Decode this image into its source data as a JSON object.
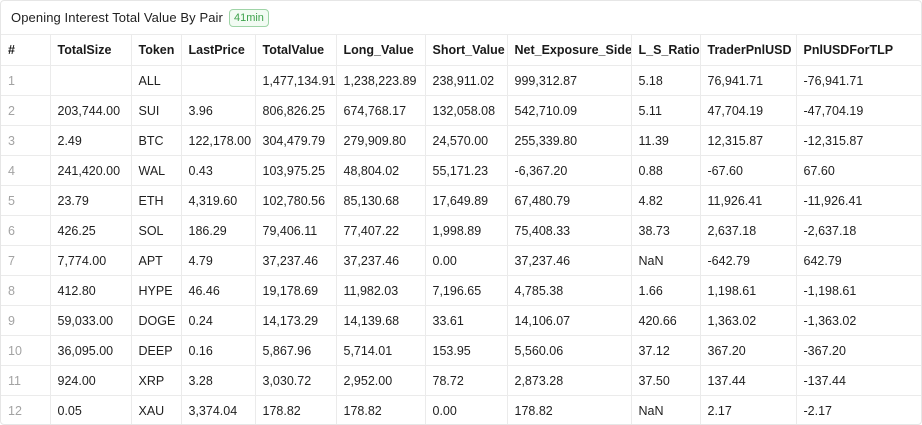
{
  "panel": {
    "title": "Opening Interest Total Value By Pair",
    "badge": "41min"
  },
  "table": {
    "columns": [
      "#",
      "TotalSize",
      "Token",
      "LastPrice",
      "TotalValue",
      "Long_Value",
      "Short_Value",
      "Net_Exposure_Side",
      "L_S_Ratio",
      "TraderPnlUSD",
      "PnlUSDForTLP"
    ],
    "rows": [
      [
        "1",
        "",
        "ALL",
        "",
        "1,477,134.91",
        "1,238,223.89",
        "238,911.02",
        "999,312.87",
        "5.18",
        "76,941.71",
        "-76,941.71"
      ],
      [
        "2",
        "203,744.00",
        "SUI",
        "3.96",
        "806,826.25",
        "674,768.17",
        "132,058.08",
        "542,710.09",
        "5.11",
        "47,704.19",
        "-47,704.19"
      ],
      [
        "3",
        "2.49",
        "BTC",
        "122,178.00",
        "304,479.79",
        "279,909.80",
        "24,570.00",
        "255,339.80",
        "11.39",
        "12,315.87",
        "-12,315.87"
      ],
      [
        "4",
        "241,420.00",
        "WAL",
        "0.43",
        "103,975.25",
        "48,804.02",
        "55,171.23",
        "-6,367.20",
        "0.88",
        "-67.60",
        "67.60"
      ],
      [
        "5",
        "23.79",
        "ETH",
        "4,319.60",
        "102,780.56",
        "85,130.68",
        "17,649.89",
        "67,480.79",
        "4.82",
        "11,926.41",
        "-11,926.41"
      ],
      [
        "6",
        "426.25",
        "SOL",
        "186.29",
        "79,406.11",
        "77,407.22",
        "1,998.89",
        "75,408.33",
        "38.73",
        "2,637.18",
        "-2,637.18"
      ],
      [
        "7",
        "7,774.00",
        "APT",
        "4.79",
        "37,237.46",
        "37,237.46",
        "0.00",
        "37,237.46",
        "NaN",
        "-642.79",
        "642.79"
      ],
      [
        "8",
        "412.80",
        "HYPE",
        "46.46",
        "19,178.69",
        "11,982.03",
        "7,196.65",
        "4,785.38",
        "1.66",
        "1,198.61",
        "-1,198.61"
      ],
      [
        "9",
        "59,033.00",
        "DOGE",
        "0.24",
        "14,173.29",
        "14,139.68",
        "33.61",
        "14,106.07",
        "420.66",
        "1,363.02",
        "-1,363.02"
      ],
      [
        "10",
        "36,095.00",
        "DEEP",
        "0.16",
        "5,867.96",
        "5,714.01",
        "153.95",
        "5,560.06",
        "37.12",
        "367.20",
        "-367.20"
      ],
      [
        "11",
        "924.00",
        "XRP",
        "3.28",
        "3,030.72",
        "2,952.00",
        "78.72",
        "2,873.28",
        "37.50",
        "137.44",
        "-137.44"
      ],
      [
        "12",
        "0.05",
        "XAU",
        "3,374.04",
        "178.82",
        "178.82",
        "0.00",
        "178.82",
        "NaN",
        "2.17",
        "-2.17"
      ]
    ]
  }
}
